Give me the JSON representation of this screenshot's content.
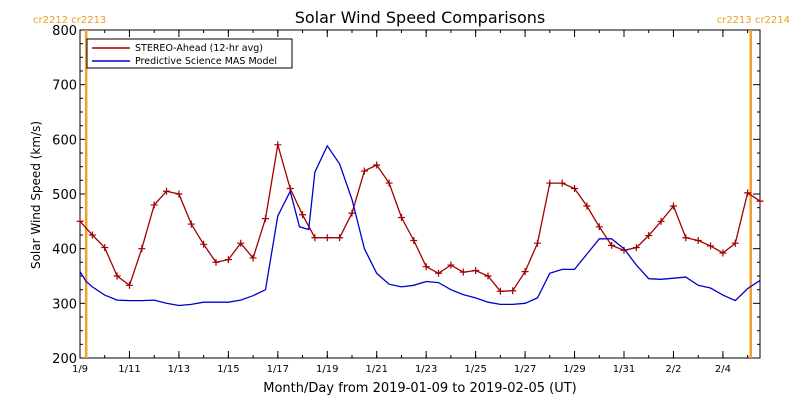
{
  "chart_data": {
    "type": "line",
    "title": "Solar Wind Speed Comparisons",
    "xlabel": "Month/Day from 2019-01-09 to 2019-02-05 (UT)",
    "ylabel": "Solar Wind Speed (km/s)",
    "xlim": [
      "2019-01-09",
      "2019-02-05T12:00"
    ],
    "ylim": [
      200,
      800
    ],
    "x_ticks": [
      "1/9",
      "1/11",
      "1/13",
      "1/15",
      "1/17",
      "1/19",
      "1/21",
      "1/23",
      "1/25",
      "1/27",
      "1/29",
      "1/31",
      "2/2",
      "2/4"
    ],
    "y_ticks": [
      200,
      300,
      400,
      500,
      600,
      700,
      800
    ],
    "legend_position": "top-left",
    "carrington_labels": {
      "left": "cr2212 cr2213",
      "right": "cr2213 cr2214",
      "left_marker_date": "2019-01-09T06:00",
      "right_marker_date": "2019-02-05T03:00",
      "color": "#f0a030"
    },
    "series": [
      {
        "name": "STEREO-Ahead (12-hr avg)",
        "color": "#a00000",
        "marker": "+",
        "x": [
          "2019-01-09T00:00",
          "2019-01-09T12:00",
          "2019-01-10T00:00",
          "2019-01-10T12:00",
          "2019-01-11T00:00",
          "2019-01-11T12:00",
          "2019-01-12T00:00",
          "2019-01-12T12:00",
          "2019-01-13T00:00",
          "2019-01-13T12:00",
          "2019-01-14T00:00",
          "2019-01-14T12:00",
          "2019-01-15T00:00",
          "2019-01-15T12:00",
          "2019-01-16T00:00",
          "2019-01-16T12:00",
          "2019-01-17T00:00",
          "2019-01-17T12:00",
          "2019-01-18T00:00",
          "2019-01-18T12:00",
          "2019-01-19T00:00",
          "2019-01-19T12:00",
          "2019-01-20T00:00",
          "2019-01-20T12:00",
          "2019-01-21T00:00",
          "2019-01-21T12:00",
          "2019-01-22T00:00",
          "2019-01-22T12:00",
          "2019-01-23T00:00",
          "2019-01-23T12:00",
          "2019-01-24T00:00",
          "2019-01-24T12:00",
          "2019-01-25T00:00",
          "2019-01-25T12:00",
          "2019-01-26T00:00",
          "2019-01-26T12:00",
          "2019-01-27T00:00",
          "2019-01-27T12:00",
          "2019-01-28T00:00",
          "2019-01-28T12:00",
          "2019-01-29T00:00",
          "2019-01-29T12:00",
          "2019-01-30T00:00",
          "2019-01-30T12:00",
          "2019-01-31T00:00",
          "2019-01-31T12:00",
          "2019-02-01T00:00",
          "2019-02-01T12:00",
          "2019-02-02T00:00",
          "2019-02-02T12:00",
          "2019-02-03T00:00",
          "2019-02-03T12:00",
          "2019-02-04T00:00",
          "2019-02-04T12:00",
          "2019-02-05T00:00",
          "2019-02-05T12:00"
        ],
        "values": [
          450,
          425,
          402,
          350,
          333,
          400,
          480,
          505,
          500,
          445,
          408,
          375,
          380,
          410,
          383,
          455,
          590,
          510,
          462,
          420,
          420,
          420,
          465,
          542,
          553,
          520,
          457,
          415,
          367,
          355,
          370,
          357,
          360,
          350,
          322,
          323,
          358,
          410,
          520,
          520,
          510,
          478,
          440,
          406,
          397,
          402,
          424,
          450,
          478,
          420,
          415,
          405,
          392,
          410,
          502,
          487
        ]
      },
      {
        "name": "Predictive Science MAS Model",
        "color": "#0000cc",
        "marker": "",
        "x": [
          "2019-01-09T00:00",
          "2019-01-09T06:00",
          "2019-01-09T12:00",
          "2019-01-10T00:00",
          "2019-01-10T12:00",
          "2019-01-11T00:00",
          "2019-01-11T12:00",
          "2019-01-12T00:00",
          "2019-01-12T12:00",
          "2019-01-13T00:00",
          "2019-01-13T12:00",
          "2019-01-14T00:00",
          "2019-01-14T12:00",
          "2019-01-15T00:00",
          "2019-01-15T12:00",
          "2019-01-16T00:00",
          "2019-01-16T12:00",
          "2019-01-17T00:00",
          "2019-01-17T12:00",
          "2019-01-17T21:00",
          "2019-01-18T06:00",
          "2019-01-18T12:00",
          "2019-01-19T00:00",
          "2019-01-19T12:00",
          "2019-01-20T00:00",
          "2019-01-20T12:00",
          "2019-01-21T00:00",
          "2019-01-21T12:00",
          "2019-01-22T00:00",
          "2019-01-22T12:00",
          "2019-01-23T00:00",
          "2019-01-23T12:00",
          "2019-01-24T00:00",
          "2019-01-24T12:00",
          "2019-01-25T00:00",
          "2019-01-25T12:00",
          "2019-01-26T00:00",
          "2019-01-26T12:00",
          "2019-01-27T00:00",
          "2019-01-27T12:00",
          "2019-01-28T00:00",
          "2019-01-28T12:00",
          "2019-01-29T00:00",
          "2019-01-29T12:00",
          "2019-01-30T00:00",
          "2019-01-30T12:00",
          "2019-01-31T00:00",
          "2019-01-31T12:00",
          "2019-02-01T00:00",
          "2019-02-01T12:00",
          "2019-02-02T00:00",
          "2019-02-02T12:00",
          "2019-02-03T00:00",
          "2019-02-03T12:00",
          "2019-02-04T00:00",
          "2019-02-04T12:00",
          "2019-02-05T00:00",
          "2019-02-05T12:00"
        ],
        "values": [
          358,
          340,
          330,
          315,
          306,
          305,
          305,
          306,
          300,
          296,
          298,
          302,
          302,
          302,
          306,
          314,
          325,
          460,
          505,
          440,
          435,
          540,
          588,
          555,
          490,
          400,
          355,
          335,
          330,
          333,
          340,
          338,
          325,
          316,
          310,
          302,
          298,
          298,
          300,
          310,
          355,
          362,
          362,
          390,
          418,
          418,
          400,
          370,
          345,
          344,
          346,
          348,
          333,
          328,
          315,
          305,
          327,
          342
        ]
      }
    ]
  }
}
